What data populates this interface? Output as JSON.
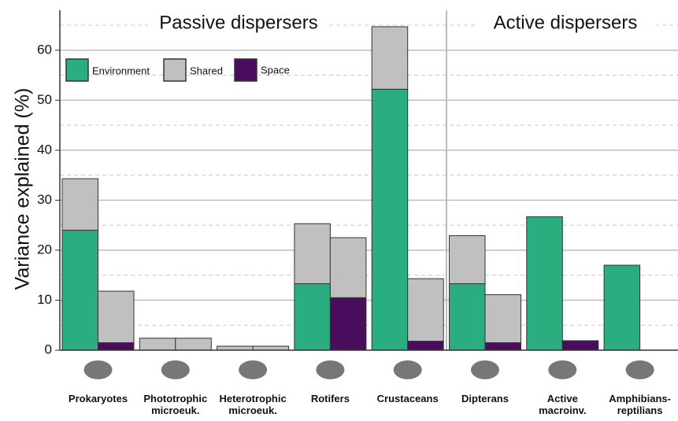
{
  "chart_data": {
    "type": "grouped-stacked-bar",
    "y_label": "Variance explained (%)",
    "sections": [
      "Passive dispersers",
      "Active dispersers"
    ],
    "categories": [
      "Prokaryotes",
      "Phototrophic\nmicroeuk.",
      "Heterotrophic\nmicroeuk.",
      "Rotifers",
      "Crustaceans",
      "Dipterans",
      "Active\nmacroinv.",
      "Amphibians-\nreptilians"
    ],
    "series": [
      {
        "name": "Environment",
        "color": "#2aae7f",
        "values": [
          24,
          0,
          0,
          13.3,
          52.2,
          13.3,
          26.7,
          17
        ]
      },
      {
        "name": "Shared",
        "color": "#c0c0c0",
        "values": [
          10.3,
          2.4,
          0.8,
          12,
          12.5,
          9.6,
          0,
          0
        ]
      },
      {
        "name": "Space",
        "color": "#4a0c5c",
        "values": [
          1.5,
          0,
          0,
          10.5,
          1.8,
          1.5,
          1.9,
          0
        ]
      }
    ],
    "ylim": [
      0,
      68
    ],
    "yticks": [
      0,
      10,
      20,
      30,
      40,
      50,
      60
    ],
    "grid": true
  }
}
